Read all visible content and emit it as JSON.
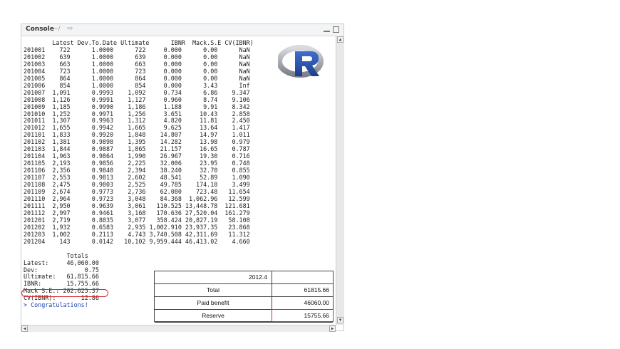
{
  "console": {
    "title": "Console",
    "path": "~/",
    "arrow_icon": "⇨"
  },
  "table": {
    "header": "        Latest Dev.To.Date Ultimate      IBNR  Mack.S.E CV(IBNR)",
    "rows": [
      "201001    722      1.0000      722     0.000      0.00      NaN",
      "201002    639      1.0000      639     0.000      0.00      NaN",
      "201003    663      1.0000      663     0.000      0.00      NaN",
      "201004    723      1.0000      723     0.000      0.00      NaN",
      "201005    864      1.0000      864     0.000      0.00      NaN",
      "201006    854      1.0000      854     0.000      3.43      Inf",
      "201007  1,091      0.9993    1,092     0.734      6.86    9.347",
      "201008  1,126      0.9991    1,127     0.960      8.74    9.106",
      "201009  1,185      0.9990    1,186     1.188      9.91    8.342",
      "201010  1,252      0.9971    1,256     3.651     10.43    2.858",
      "201011  1,307      0.9963    1,312     4.820     11.81    2.450",
      "201012  1,655      0.9942    1,665     9.625     13.64    1.417",
      "201101  1,833      0.9920    1,848    14.807     14.97    1.011",
      "201102  1,381      0.9898    1,395    14.282     13.98    0.979",
      "201103  1,844      0.9887    1,865    21.157     16.65    0.787",
      "201104  1,963      0.9864    1,990    26.967     19.30    0.716",
      "201105  2,193      0.9856    2,225    32.006     23.95    0.748",
      "201106  2,356      0.9840    2,394    38.240     32.70    0.855",
      "201107  2,553      0.9813    2,602    48.541     52.89    1.090",
      "201108  2,475      0.9803    2,525    49.785    174.18    3.499",
      "201109  2,674      0.9773    2,736    62.080    723.48   11.654",
      "201110  2,964      0.9723    3,048    84.368  1,062.96   12.599",
      "201111  2,950      0.9639    3,061   110.525 13,448.78  121.681",
      "201112  2,997      0.9461    3,168   170.636 27,520.04  161.279",
      "201201  2,719      0.8835    3,077   358.424 20,827.19   58.108",
      "201202  1,932      0.6583    2,935 1,002.910 23,937.35   23.868",
      "201203  1,002      0.2113    4,743 3,740.508 42,311.69   11.312",
      "201204    143      0.0142   10,102 9,959.444 46,413.02    4.660"
    ]
  },
  "totals": {
    "header": "            Totals",
    "lines": [
      "Latest:     46,060.00",
      "Dev:             0.75",
      "Ultimate:   61,815.66",
      "IBNR:       15,755.66",
      "Mack S.E.: 202,625.37",
      "CV(IBNR):       12.86"
    ],
    "message": "> Congratulations!"
  },
  "summary_box": {
    "period": "2012.4",
    "rows": [
      {
        "label": "Total",
        "value": "61815.66"
      },
      {
        "label": "Paid benefit",
        "value": "46060.00"
      },
      {
        "label": "Reserve",
        "value": "15755.66"
      }
    ]
  },
  "colors": {
    "highlight": "#d62828"
  }
}
